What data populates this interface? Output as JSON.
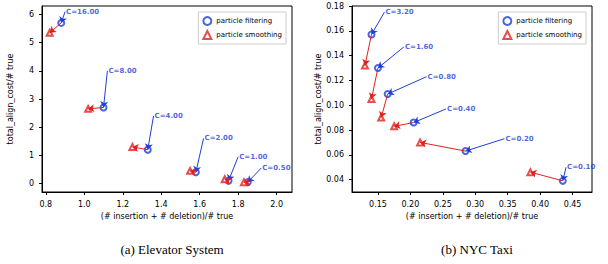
{
  "chart_data": [
    {
      "type": "scatter",
      "title": "(a) Elevator System",
      "x_label": "(# insertion + # deletion)/# true",
      "y_label": "total_align_cost/# true",
      "xlim": [
        0.78,
        2.08
      ],
      "xticks": [
        0.8,
        {
          "value": 1,
          "label": "1.0"
        },
        1.2,
        1.4,
        1.6,
        1.8,
        {
          "value": 2,
          "label": "2.0"
        }
      ],
      "ylim": [
        -0.3,
        6.3
      ],
      "yticks": [
        0,
        1,
        2,
        3,
        4,
        5,
        6
      ],
      "grid": false,
      "legend": "upper right",
      "series": [
        {
          "name": "particle filtering",
          "color": "#1f3fd6",
          "marker": "circle",
          "x": [
            0.88,
            1.1,
            1.33,
            1.58,
            1.75,
            1.85
          ],
          "values": [
            5.7,
            2.7,
            1.2,
            0.4,
            0.1,
            0.05
          ]
        },
        {
          "name": "particle smoothing",
          "color": "#e02020",
          "marker": "triangle",
          "x": [
            0.82,
            1.02,
            1.25,
            1.55,
            1.73,
            1.83
          ],
          "values": [
            5.35,
            2.65,
            1.3,
            0.45,
            0.15,
            0.05
          ]
        }
      ],
      "annotations": [
        {
          "text": "C=16.00",
          "x": 0.9,
          "y": 6.1
        },
        {
          "text": "C=8.00",
          "x": 1.12,
          "y": 4.0
        },
        {
          "text": "C=4.00",
          "x": 1.36,
          "y": 2.4
        },
        {
          "text": "C=2.00",
          "x": 1.62,
          "y": 1.6
        },
        {
          "text": "C=1.00",
          "x": 1.8,
          "y": 0.95
        },
        {
          "text": "C=0.50",
          "x": 1.92,
          "y": 0.55
        }
      ]
    },
    {
      "type": "scatter",
      "title": "(b) NYC Taxi",
      "x_label": "(# insertion + # deletion)/# true",
      "y_label": "total_align_cost/# true",
      "xlim": [
        0.11,
        0.48
      ],
      "xticks": [
        0.15,
        {
          "value": 0.2,
          "label": "0.20"
        },
        0.25,
        {
          "value": 0.3,
          "label": "0.30"
        },
        0.35,
        {
          "value": 0.4,
          "label": "0.40"
        },
        0.45
      ],
      "ylim": [
        0.03,
        0.18
      ],
      "yticks": [
        0.04,
        0.06,
        0.08,
        {
          "value": 0.1,
          "label": "0.10"
        },
        0.12,
        0.14,
        0.16,
        0.18
      ],
      "grid": false,
      "legend": "upper right",
      "series": [
        {
          "name": "particle filtering",
          "color": "#1f3fd6",
          "marker": "circle",
          "x": [
            0.14,
            0.15,
            0.165,
            0.205,
            0.285,
            0.435
          ],
          "values": [
            0.157,
            0.13,
            0.109,
            0.086,
            0.063,
            0.039
          ]
        },
        {
          "name": "particle smoothing",
          "color": "#e02020",
          "marker": "triangle",
          "x": [
            0.13,
            0.14,
            0.155,
            0.175,
            0.215,
            0.385
          ],
          "values": [
            0.132,
            0.105,
            0.09,
            0.083,
            0.07,
            0.046
          ]
        }
      ],
      "annotations": [
        {
          "text": "C=3.20",
          "x": 0.16,
          "y": 0.175
        },
        {
          "text": "C=1.60",
          "x": 0.19,
          "y": 0.147
        },
        {
          "text": "C=0.80",
          "x": 0.225,
          "y": 0.123
        },
        {
          "text": "C=0.40",
          "x": 0.255,
          "y": 0.097
        },
        {
          "text": "C=0.20",
          "x": 0.345,
          "y": 0.073
        },
        {
          "text": "C=0.10",
          "x": 0.44,
          "y": 0.05
        }
      ]
    }
  ]
}
